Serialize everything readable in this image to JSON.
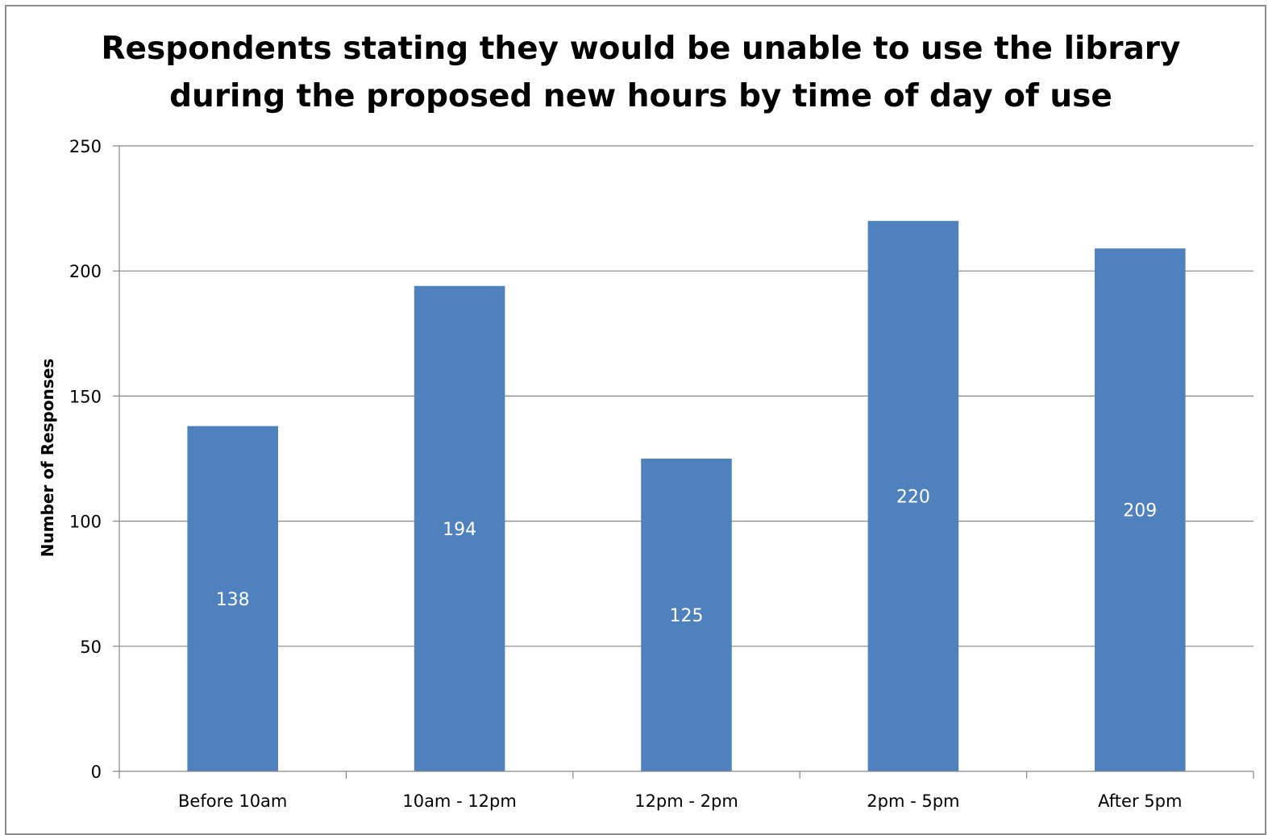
{
  "chart_data": {
    "type": "bar",
    "title_lines": [
      "Respondents stating they would be unable to use the library",
      "during the proposed new hours by time of day of use"
    ],
    "xlabel": "",
    "ylabel": "Number of Responses",
    "categories": [
      "Before 10am",
      "10am - 12pm",
      "12pm - 2pm",
      "2pm - 5pm",
      "After 5pm"
    ],
    "values": [
      138,
      194,
      125,
      220,
      209
    ],
    "data_labels": [
      "138",
      "194",
      "125",
      "220",
      "209"
    ],
    "ylim": [
      0,
      250
    ],
    "yticks": [
      "0",
      "50",
      "100",
      "150",
      "200",
      "250"
    ],
    "grid": true,
    "legend": "none",
    "bar_color": "#4F81BD",
    "gridline_color": "#868686"
  }
}
